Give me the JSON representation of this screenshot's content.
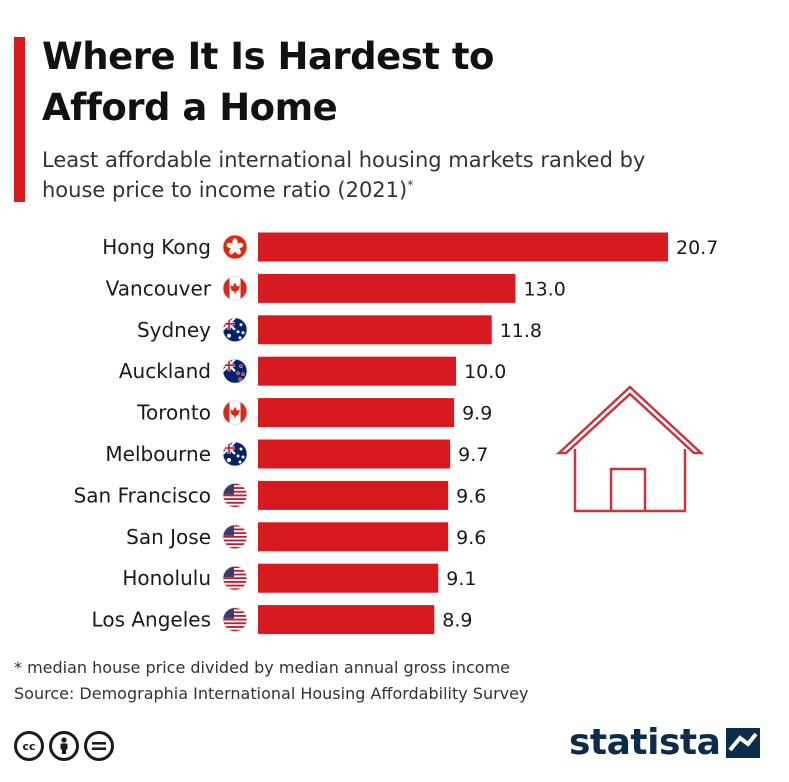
{
  "title": "Where It Is Hardest to Afford a Home",
  "subtitle": "Least affordable international housing markets ranked by house price to income ratio (2021)",
  "subtitle_mark": "*",
  "footnote": "* median house price divided by median annual gross income",
  "source": "Source: Demographia International Housing Affordability Survey",
  "brand": {
    "name": "statista"
  },
  "license_icons": [
    "cc-icon",
    "attribution-icon",
    "no-derivatives-icon"
  ],
  "colors": {
    "accent": "#d71920",
    "bar": "#d71920",
    "brand": "#0b2d4a",
    "house": "#c9353d"
  },
  "chart_data": {
    "type": "bar",
    "orientation": "horizontal",
    "categories": [
      "Hong Kong",
      "Vancouver",
      "Sydney",
      "Auckland",
      "Toronto",
      "Melbourne",
      "San Francisco",
      "San Jose",
      "Honolulu",
      "Los Angeles"
    ],
    "values": [
      20.7,
      13.0,
      11.8,
      10.0,
      9.9,
      9.7,
      9.6,
      9.6,
      9.1,
      8.9
    ],
    "value_labels": [
      "20.7",
      "13.0",
      "11.8",
      "10.0",
      "9.9",
      "9.7",
      "9.6",
      "9.6",
      "9.1",
      "8.9"
    ],
    "flags": [
      "hong-kong",
      "canada",
      "australia",
      "new-zealand",
      "canada",
      "australia",
      "usa",
      "usa",
      "usa",
      "usa"
    ],
    "xlim": [
      0,
      20.7
    ],
    "grid": false,
    "title": "",
    "xlabel": "",
    "ylabel": ""
  }
}
